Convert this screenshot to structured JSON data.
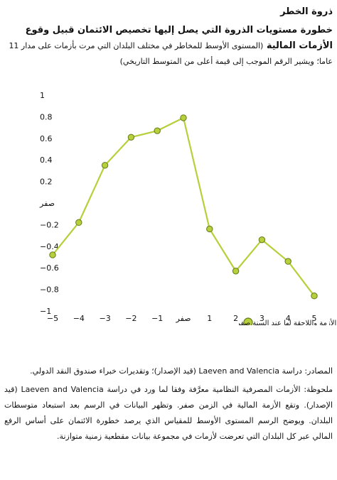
{
  "header": {
    "title": "ذروة الخطر",
    "subtitle_bold": "خطورة مستويات الذروة التي يصل إليها تخصيص الائتمان قبيل وقوع الأزمات المالية",
    "subtitle_desc": "(المستوى الأوسط للمخاطر في مختلف البلدان التي مرت بأزمات على مدار 11 عاما؛ ويشير الرقم الموجب إلى قيمة أعلى من المتوسط التاريخي)"
  },
  "chart_data": {
    "type": "line",
    "x": [
      -5,
      -4,
      -3,
      -2,
      -1,
      0,
      1,
      2,
      3,
      4,
      5
    ],
    "x_tick_labels": [
      "5−",
      "4−",
      "3−",
      "2−",
      "1−",
      "صفر",
      "1",
      "2",
      "3",
      "4",
      "5"
    ],
    "series": [
      {
        "name": "السنوات السابقة على الأزمة واللاحقة لها عند السنة صفر",
        "values": [
          -0.48,
          -0.18,
          0.35,
          0.61,
          0.67,
          0.79,
          -0.24,
          -0.63,
          -0.34,
          -0.54,
          -0.86
        ]
      }
    ],
    "ylim": [
      -1,
      1
    ],
    "y_ticks": [
      1,
      0.8,
      0.6,
      0.4,
      0.2,
      0,
      -0.2,
      -0.4,
      -0.6,
      -0.8,
      -1
    ],
    "y_tick_labels": [
      "1",
      "0.8",
      "0.6",
      "0.4",
      "0.2",
      "صفر",
      "0.2−",
      "0.4−",
      "0.6−",
      "0.8−",
      "1−"
    ],
    "grid": false,
    "legend_position": "bottom",
    "colors": {
      "line": "#b7cf3a",
      "marker_fill": "#b7cf3a",
      "marker_stroke": "#5f7a1a"
    }
  },
  "notes": {
    "sources": "المصادر: دراسة Laeven and Valencia (قيد الإصدار)؛ وتقديرات خبراء صندوق النقد الدولي.",
    "note": "ملحوظة: الأزمات المصرفية النظامية معرَّفة وفقا لما ورد في دراسة Laeven and Valencia (قيد الإصدار). وتقع الأزمة المالية في الزمن صفر. وتظهر البيانات في الرسم بعد استبعاد متوسطات البلدان. ويوضح الرسم المستوى الأوسط للمقياس الذي يرصد خطورة الائتمان على أساس الرفع المالي عبر كل البلدان التي تعرضت لأزمات في مجموعة بيانات مقطعية زمنية متوازنة."
  }
}
